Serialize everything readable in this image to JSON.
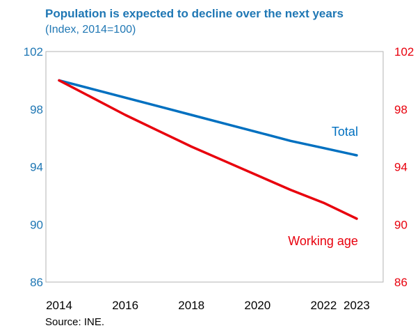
{
  "chart_data": {
    "type": "line",
    "title": "Population is expected to decline over the next years",
    "subtitle": "(Index, 2014=100)",
    "source": "Source: INE.",
    "x": [
      2014,
      2015,
      2016,
      2017,
      2018,
      2019,
      2020,
      2021,
      2022,
      2023
    ],
    "x_tick_labels": [
      "2014",
      "2016",
      "2018",
      "2020",
      "2022",
      "2023"
    ],
    "x_tick_values": [
      2014,
      2016,
      2018,
      2020,
      2022,
      2023
    ],
    "xlim": [
      2013.6,
      2023.8
    ],
    "ylim": [
      86,
      102
    ],
    "y_ticks": [
      86,
      90,
      94,
      98,
      102
    ],
    "y_tick_labels": [
      "86",
      "90",
      "94",
      "98",
      "102"
    ],
    "y_right_ticks": [
      86,
      90,
      94,
      98,
      102
    ],
    "y_right_tick_labels": [
      "86",
      "90",
      "94",
      "98",
      "102"
    ],
    "grid": false,
    "left_axis_color": "#1f77b4",
    "right_axis_color": "#e8000d",
    "series": [
      {
        "name": "Total",
        "color": "#0070c0",
        "values": [
          100,
          99.4,
          98.8,
          98.2,
          97.6,
          97.0,
          96.4,
          95.8,
          95.3,
          94.8
        ]
      },
      {
        "name": "Working age",
        "color": "#e8000d",
        "values": [
          100,
          98.8,
          97.6,
          96.5,
          95.4,
          94.4,
          93.4,
          92.4,
          91.5,
          90.4
        ]
      }
    ]
  }
}
